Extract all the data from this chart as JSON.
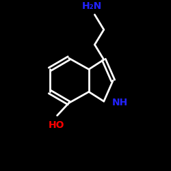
{
  "background_color": "#000000",
  "bond_color": "#ffffff",
  "bond_width": 2.0,
  "atom_N_color": "#2222ff",
  "atom_O_color": "#ff0000",
  "figsize": [
    2.5,
    2.5
  ],
  "dpi": 100,
  "xlim": [
    0,
    10
  ],
  "ylim": [
    0,
    10
  ],
  "nh2_text": "H₂N",
  "nh_text": "NH",
  "oh_text": "HO"
}
